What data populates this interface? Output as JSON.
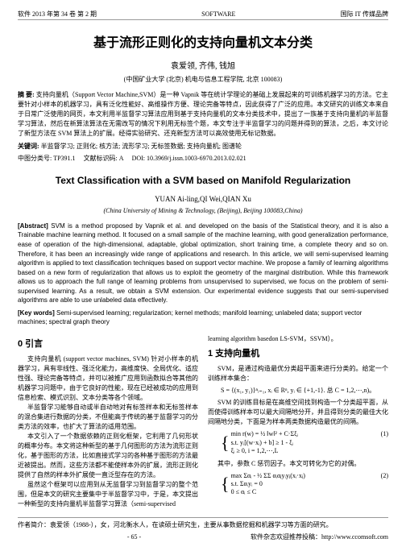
{
  "header": {
    "left": "软件 2013 年第 34 卷 第 2 期",
    "center": "SOFTWARE",
    "right": "国际 IT 传媒品牌"
  },
  "titleCn": "基于流形正则化的支持向量机文本分类",
  "authorsCn": "袁爱领, 齐伟, 钱旭",
  "affilCn": "(中国矿业大学 (北京) 机电与信息工程学院, 北京 100083)",
  "abstractCn": {
    "label": "摘 要: ",
    "text": "支持向量机（Support Vector Machine,SVM）是一种 Vapnik 等在统计学理论的基础上发展起来的可训练机器学习的方法。它主要针对小样本的机器学习，具有泛化性能好、高维操作方便、理论完备等特点，因此获得了广泛的应用。本文研究的训练文本来自于日常广泛使用的网页，本文利用半监督学习算法应用到基于支持向量机的文本分类技术中，提出了一族基于支持向量机的半监督学习算法，然后在新算法算法在无需改写的情况下利用无标签个题，本文专注于半监督学习的问题并得到的算法，之后，本文讨论了新型方法在 SVM 算法上的扩展。经得实验研究、还充新型方法可以高效使用无标记数据。"
  },
  "kwCn": {
    "label": "关键词: ",
    "text": "半监督学习; 正则化; 核方法; 流形学习; 无标签数据; 支持向量机; 图谱轮"
  },
  "meta": {
    "clc": "中图分类号: TP391.1",
    "doccode": "文献标识码: A",
    "doi": "DOI: 10.3969/j.issn.1003-6970.2013.02.021"
  },
  "titleEn": "Text Classification with a SVM based on Manifold Regularization",
  "authorsEn": "YUAN Ai-ling,QI Wei,QIAN Xu",
  "affilEn": "(China University of Mining & Technology, (Beijing), Beijing 100083,China)",
  "abstractEn": {
    "label": "[Abstract] ",
    "text": "SVM is a method proposed by Vapnik et al. and developed on the basis of the Statistical theory, and it is also a Trainable machine learning method. It focused on a small sample of the machine learning, with good generalization performance, ease of operation of the high-dimensional, adaptable, global optimization, short training time, a complete theory and so on. Therefore, it has been an increasingly wide range of applications and research. In this article, we will semi-supervised learning algorithm is applied to text classification techniques based on support vector machine. We propose a family of learning algorithms based on a new form of regularization that allows us to exploit the geometry of the marginal distribution. While this framework allows us to approach the full range of learning problems from unsupervised to supervised, we focus on the problem of semi-supervised learning. As a result, we obtain a SVM extension. Our experimental evidence suggests that our semi-supervised algorithms are able to use unlabeled data effectively."
  },
  "kwEn": {
    "label": "[Key words] ",
    "text": "Semi-supervised learning; regularization; kernel methods; manifold learning; unlabeled data; support vector machines; spectral graph theory"
  },
  "leftCol": {
    "sec0": "0 引言",
    "p1": "支持向量机 (support vector machines, SVM) 针对小样本的机器学习，具有非线性、强泛化能力，高维度快、全局优化、适应性强、理论完备等特点，并可以被推广应用到函数拟合等其他的机器学习问题中，由于它良好的性能，现在已经被成功的应用到信息检索、模式识别、文本分类等各个领域。",
    "p2": "半监督学习能够自动或半自动地对有标签样本和无标签样本的混合集进行数据的分类，不但能高于传统的基于监督学习的分类方法的效率，也扩大了算法的适用范围。",
    "p3": "本文引入了一个数据依赖的正则化框架，它利用了几何形状的概率分布。本文将这种新型的基于几何图形的方法为流形正则化，基于图形的方法，比如直接式学习的各种基于图形的方法最近被提出。然而，这些方法都不能使样本外的扩展，流形正则化提供了自然的样本外扩展使一直泛型存在的方法。",
    "p4": "虽然这个框架可以应用到从无监督学习到监督学习的整个范围，但是本文的研究主要集中于半监督学习中，于是，本文提出一种新型的支持向量机半监督学习算法（semi-supervised"
  },
  "rightCol": {
    "topLine": "learning algorithm basedon LS-SVM，SSVM）。",
    "sec1": "1 支持向量机",
    "p1": "SVM，是通过构造最优分类超平面来进行分类的。给定一个训练样本集合：",
    "f1": "S = {(x₁, y₁)}ⁿᵢ₌₁, xᵢ ∈ Rⁿ, yᵢ ∈ {+1,-1}. 总 C = 1,2,⋯,n)。",
    "p2": "SVM 的训练目标是在高维空间找到构造一个分类超平面，从而使得训练样本可以最大间隔地分开，并且得到分类的最佳大化间隔地分类，下面是为样本两类数据构造最优的间隔。",
    "f2a": "min r(w) = ½ ‖w‖² + C·Σξᵢ",
    "f2b": "s.t.  yᵢ[(w·xᵢ) + b] ≥ 1 - ξᵢ",
    "f2c": "ξᵢ ≥ 0, i = 1,2,⋯,L",
    "eqnum1": "(1)",
    "p3": "其中，参数 C 惩罚因子。本文可转化为它的对偶。",
    "f3a": "max Σαᵢ - ½ ΣΣ αᵢαⱼyᵢyⱼ(xᵢ·xⱼ)",
    "f3b": "s.t.  Σαᵢyᵢ = 0",
    "f3c": "0 ≤ αᵢ ≤ C",
    "eqnum2": "(2)"
  },
  "footer": {
    "bio": "作者简介：袁爱领（1988-），女，河北衡水人，在读硕士研究生，主要从事数据挖掘和机器学习等方面的研究。",
    "page": "- 65 -",
    "note": "软件杂志欢迎推荐投稿：http://www.ccomsoft.com"
  }
}
